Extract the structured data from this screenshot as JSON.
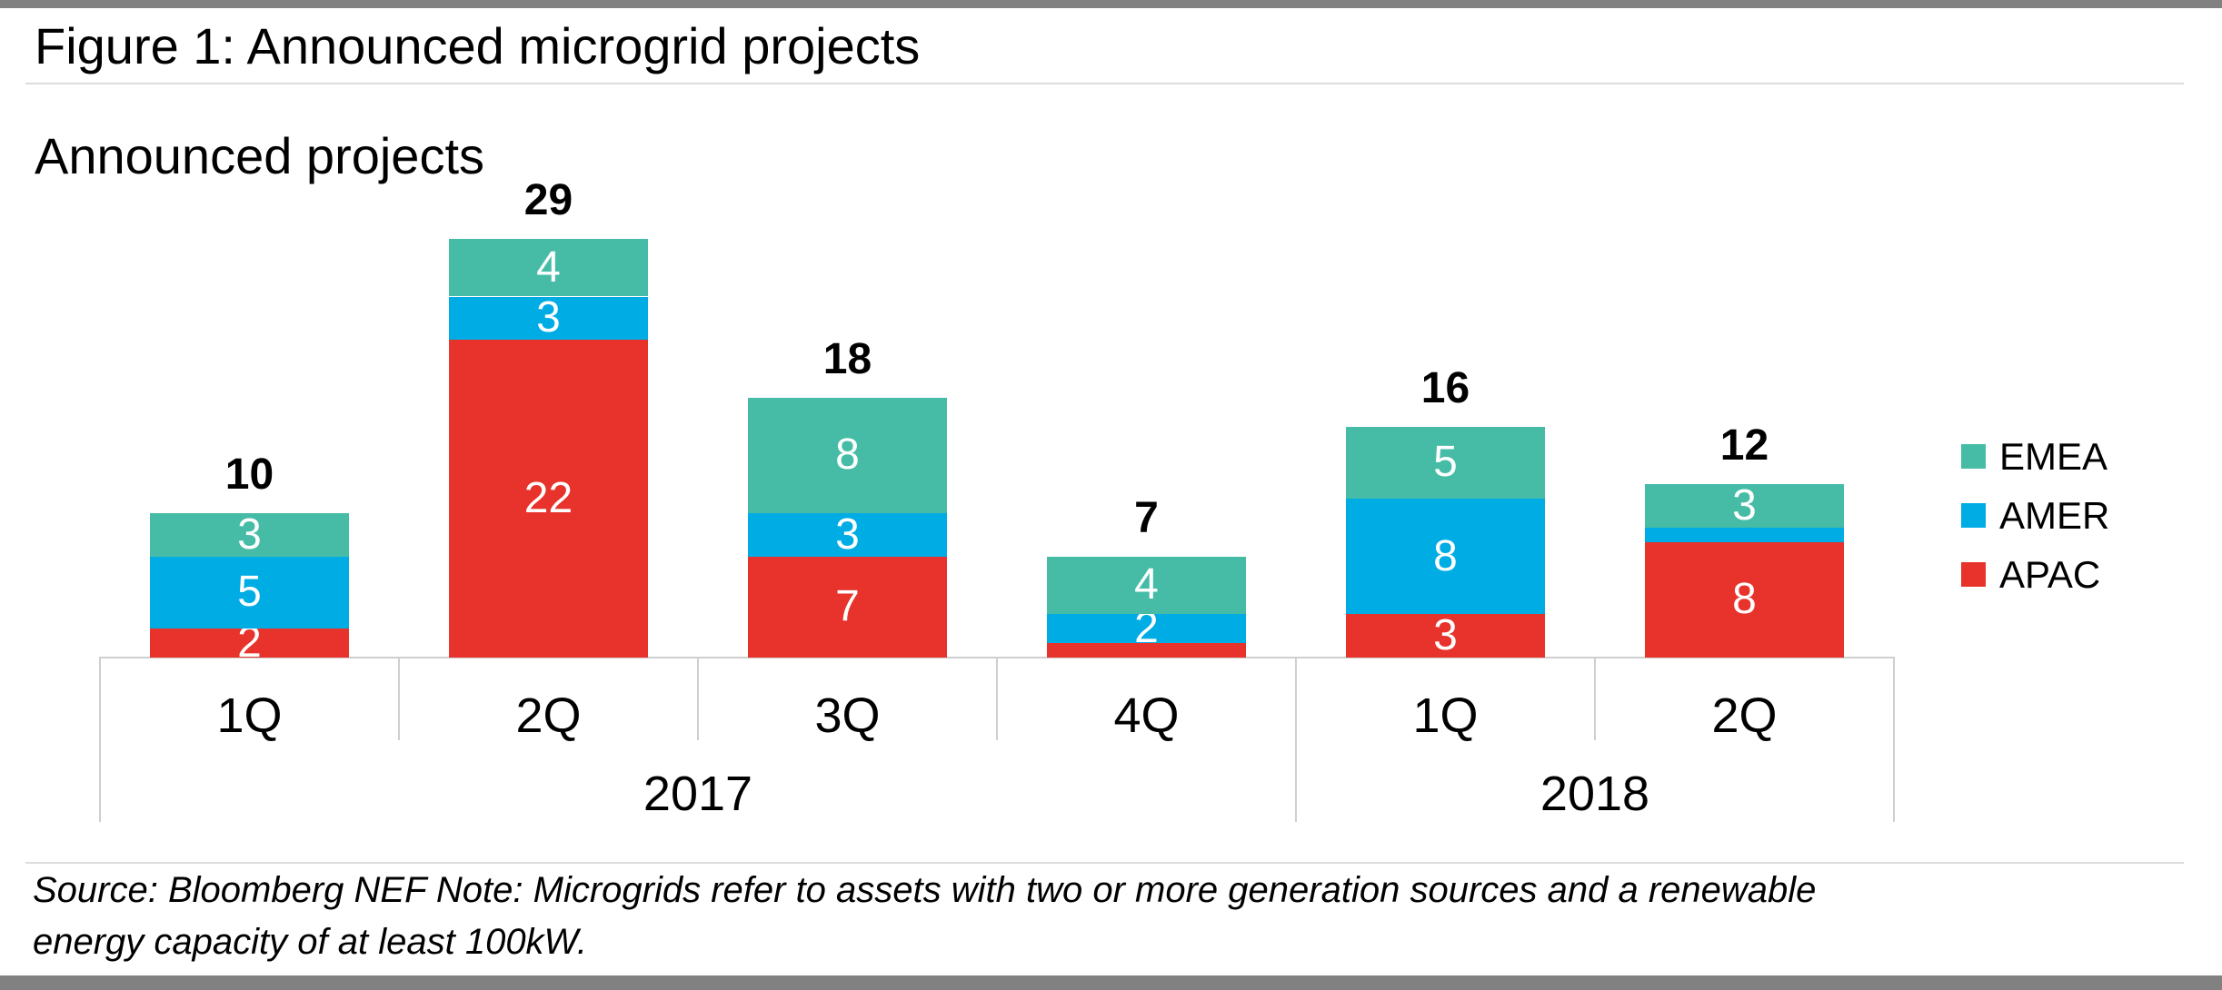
{
  "page": {
    "figure_title": "Figure 1: Announced microgrid projects",
    "source_note": {
      "line1": "Source: Bloomberg NEF Note: Microgrids refer to assets with two or more generation sources and a renewable",
      "line2": "energy capacity of at least 100kW."
    }
  },
  "chart_data": {
    "type": "bar",
    "stacked": true,
    "title": "Announced projects",
    "ylabel": "",
    "xlabel": "",
    "grid": false,
    "legend_position": "right",
    "categories": [
      "1Q",
      "2Q",
      "3Q",
      "4Q",
      "1Q",
      "2Q"
    ],
    "year_groups": [
      {
        "label": "2017",
        "span": 4
      },
      {
        "label": "2018",
        "span": 2
      }
    ],
    "series": [
      {
        "name": "APAC",
        "color": "#e7332b",
        "values": [
          2,
          22,
          7,
          1,
          3,
          8
        ]
      },
      {
        "name": "AMER",
        "color": "#00ace4",
        "values": [
          5,
          3,
          3,
          2,
          8,
          1
        ]
      },
      {
        "name": "EMEA",
        "color": "#46bca7",
        "values": [
          3,
          4,
          8,
          4,
          5,
          3
        ]
      }
    ],
    "totals": [
      10,
      29,
      18,
      7,
      16,
      12
    ],
    "legend": [
      "EMEA",
      "AMER",
      "APAC"
    ],
    "ylim": [
      0,
      29
    ],
    "value_label_color": "#ffffff"
  }
}
